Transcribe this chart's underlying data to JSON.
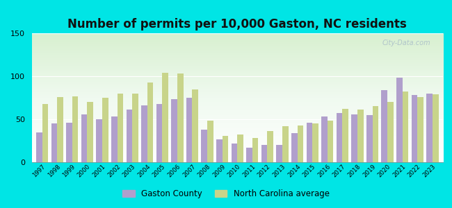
{
  "title": "Number of permits per 10,000 Gaston, NC residents",
  "years": [
    1997,
    1998,
    1999,
    2000,
    2001,
    2002,
    2003,
    2004,
    2005,
    2006,
    2007,
    2008,
    2009,
    2010,
    2011,
    2012,
    2013,
    2014,
    2015,
    2016,
    2017,
    2018,
    2019,
    2020,
    2021,
    2022,
    2023
  ],
  "gaston": [
    35,
    45,
    46,
    56,
    50,
    53,
    61,
    66,
    68,
    73,
    75,
    38,
    27,
    22,
    17,
    20,
    20,
    34,
    46,
    53,
    57,
    56,
    55,
    84,
    98,
    78,
    80
  ],
  "nc_avg": [
    68,
    76,
    77,
    70,
    75,
    80,
    80,
    93,
    104,
    103,
    85,
    48,
    31,
    32,
    28,
    36,
    42,
    43,
    45,
    48,
    62,
    61,
    65,
    70,
    82,
    76,
    79
  ],
  "gaston_color": "#b09fcc",
  "nc_avg_color": "#c8d48a",
  "outer_background": "#00e5e5",
  "ylim": [
    0,
    150
  ],
  "yticks": [
    0,
    50,
    100,
    150
  ],
  "title_fontsize": 12,
  "legend_gaston": "Gaston County",
  "legend_nc": "North Carolina average"
}
